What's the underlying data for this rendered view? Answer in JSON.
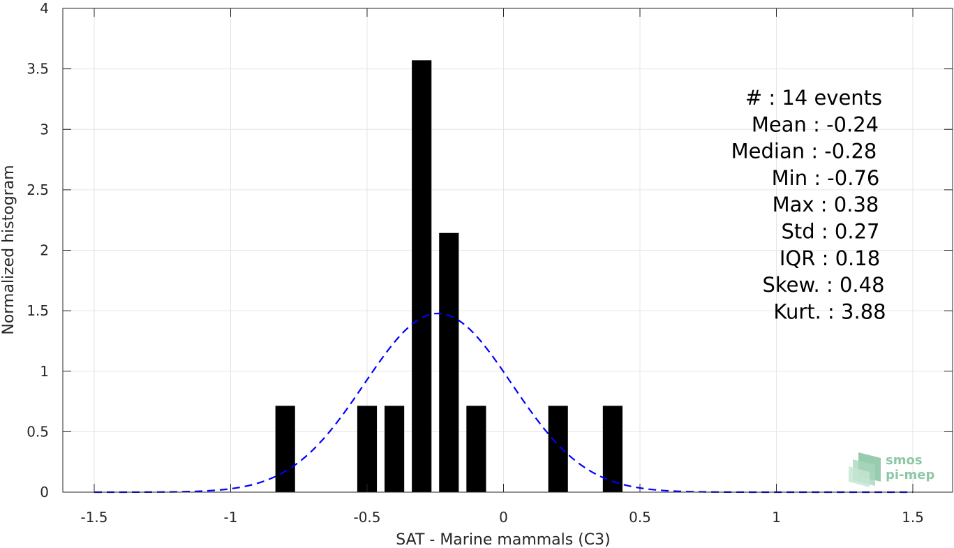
{
  "chart_data": {
    "type": "bar",
    "xlabel": "SAT - Marine mammals (C3)",
    "ylabel": "Normalized histogram",
    "xlim": [
      -1.5,
      1.5
    ],
    "ylim": [
      0,
      4
    ],
    "xticks": [
      "-1.5",
      "-1",
      "-0.5",
      "0",
      "0.5",
      "1",
      "1.5"
    ],
    "yticks": [
      "0",
      "0.5",
      "1",
      "1.5",
      "2",
      "2.5",
      "3",
      "3.5",
      "4"
    ],
    "grid": true,
    "bin_width": 0.1,
    "bars": [
      {
        "x": -0.8,
        "value": 0.714
      },
      {
        "x": -0.5,
        "value": 0.714
      },
      {
        "x": -0.4,
        "value": 0.714
      },
      {
        "x": -0.3,
        "value": 3.571
      },
      {
        "x": -0.2,
        "value": 2.143
      },
      {
        "x": -0.1,
        "value": 0.714
      },
      {
        "x": 0.2,
        "value": 0.714
      },
      {
        "x": 0.4,
        "value": 0.714
      }
    ],
    "bar_color": "#000000",
    "fit_curve": {
      "style": "dashed",
      "color": "#0000ff",
      "mean": -0.24,
      "std": 0.27
    },
    "stats": [
      "#  : 14 events",
      "Mean : -0.24",
      "Median : -0.28",
      "Min : -0.76",
      "Max : 0.38",
      "Std : 0.27",
      "IQR : 0.18",
      "Skew. : 0.48",
      "Kurt. : 3.88"
    ]
  },
  "logo": {
    "line1": "smos",
    "line2": "pi-mep",
    "color": "#8cc7a6"
  }
}
